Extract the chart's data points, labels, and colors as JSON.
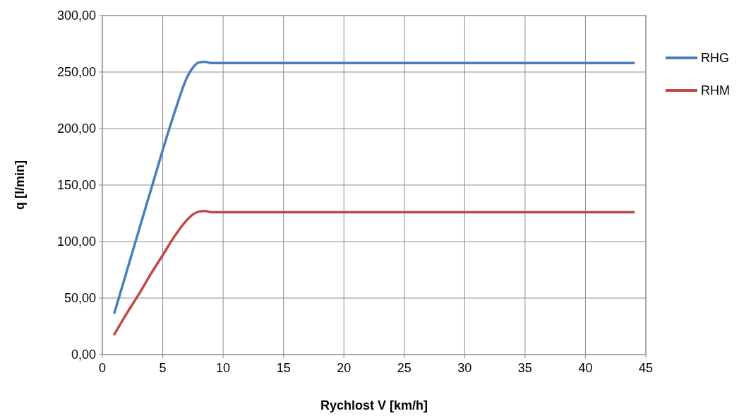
{
  "chart_data": {
    "type": "line",
    "xlabel": "Rychlost V [km/h]",
    "ylabel": "q [l/min]",
    "xlim": [
      0,
      45
    ],
    "xticks": [
      0,
      5,
      10,
      15,
      20,
      25,
      30,
      35,
      40,
      45
    ],
    "ylim": [
      0,
      300
    ],
    "yticks": [
      {
        "value": 0,
        "label": "0,00"
      },
      {
        "value": 50,
        "label": "50,00"
      },
      {
        "value": 100,
        "label": "100,00"
      },
      {
        "value": 150,
        "label": "150,00"
      },
      {
        "value": 200,
        "label": "200,00"
      },
      {
        "value": 250,
        "label": "250,00"
      },
      {
        "value": 300,
        "label": "300,00"
      }
    ],
    "grid": true,
    "legend": "right",
    "marker": "none",
    "line_style": "solid",
    "series": [
      {
        "name": "RHG",
        "color": "#4a7ebb",
        "x": [
          1,
          2,
          3,
          4,
          5,
          6,
          7,
          7.5,
          8,
          8.5,
          9,
          44
        ],
        "values": [
          37,
          73,
          109,
          145,
          181,
          215,
          245,
          254,
          258.5,
          259,
          258,
          258
        ]
      },
      {
        "name": "RHM",
        "color": "#be4b48",
        "x": [
          1,
          2,
          3,
          4,
          5,
          6,
          7,
          7.5,
          8,
          8.5,
          9,
          44
        ],
        "values": [
          18,
          36,
          53,
          71,
          88,
          105,
          119,
          124,
          126.5,
          127,
          126,
          126
        ]
      }
    ]
  }
}
